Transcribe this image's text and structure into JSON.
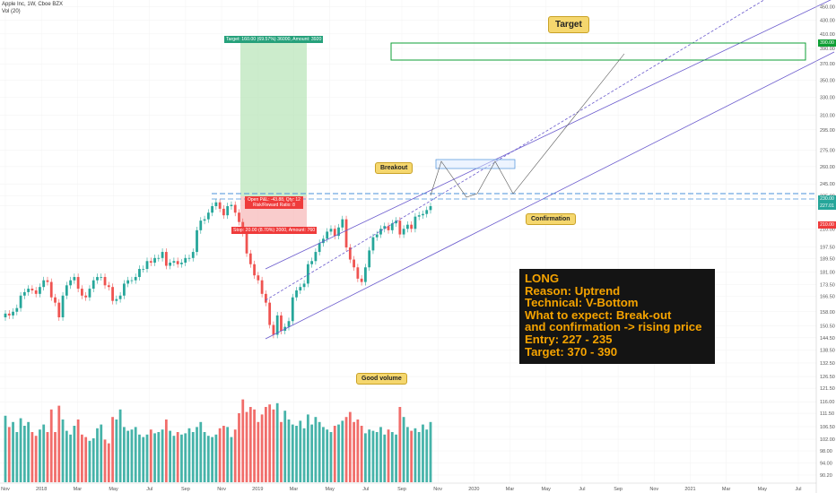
{
  "header": {
    "symbol_line": "Apple Inc, 1W, Cboe BZX",
    "volume_line": "Vol (20)"
  },
  "colors": {
    "up": "#26a69a",
    "down": "#ef5350",
    "channel": "#6a5acd",
    "target_box": "#0e9f34",
    "callout": "#f5d76e",
    "info_text": "#f5a300",
    "info_bg": "#141414"
  },
  "annotations": {
    "target": "Target",
    "breakout": "Breakout",
    "confirmation": "Confirmation",
    "good_volume": "Good volume",
    "take_profit": "Target: 160.00 (69.57%) 36000, Amount: 3920",
    "stop": "Stop: 20.00 (8.70%) 2000, Amount: 760",
    "open_pnl": "Open P&L: -43.88, Qty: 12",
    "risk_reward": "Risk/Reward Ratio: 8"
  },
  "info_box": {
    "lines": [
      "LONG",
      "Reason: Uptrend",
      "Technical: V-Bottom",
      "What to expect: Break-out",
      "and confirmation -> rising price",
      "Entry: 227 - 235",
      "Target: 370 - 390"
    ]
  },
  "axis_tags": {
    "top_tag": "390.00",
    "breakout_tag": "230.00",
    "price_tag": "227.01",
    "stop_tag": "210.00"
  },
  "chart_data": {
    "type": "candlestick",
    "title": "Apple Inc, 1W, Cboe BZX",
    "y_scale": "log",
    "ylim": [
      88,
      455
    ],
    "y_ticks": [
      90.2,
      94,
      98,
      102,
      106.5,
      111.5,
      116,
      121.5,
      126.5,
      132.5,
      138.5,
      144.5,
      150.5,
      158,
      166.5,
      173.5,
      181,
      189.5,
      197.5,
      210,
      227.5,
      235,
      245,
      260,
      275,
      295,
      310,
      330,
      350,
      370,
      390,
      410,
      430,
      450
    ],
    "x_ticks": [
      "Nov",
      "2018",
      "Mar",
      "May",
      "Jul",
      "Sep",
      "Nov",
      "2019",
      "Mar",
      "May",
      "Jul",
      "Sep",
      "Nov",
      "2020",
      "Mar",
      "May",
      "Jul",
      "Sep",
      "Nov",
      "2021",
      "Mar",
      "May",
      "Jul"
    ],
    "candles_close": [
      157,
      156,
      158,
      160,
      167,
      169,
      171,
      170,
      168,
      172,
      176,
      175,
      166,
      163,
      155,
      167,
      173,
      176,
      178,
      171,
      167,
      166,
      171,
      176,
      178,
      178,
      173,
      172,
      164,
      165,
      167,
      174,
      176,
      176,
      178,
      183,
      183,
      188,
      187,
      190,
      190,
      194,
      185,
      187,
      188,
      186,
      187,
      190,
      190,
      194,
      209,
      216,
      217,
      222,
      227,
      230,
      225,
      220,
      227,
      228,
      222,
      215,
      207,
      193,
      186,
      179,
      176,
      168,
      163,
      151,
      146,
      156,
      148,
      150,
      153,
      166,
      170,
      172,
      174,
      186,
      188,
      194,
      200,
      203,
      208,
      210,
      205,
      211,
      217,
      197,
      189,
      184,
      177,
      175,
      184,
      195,
      204,
      206,
      210,
      212,
      209,
      214,
      216,
      206,
      210,
      213,
      210,
      219,
      220,
      221,
      224,
      227
    ],
    "volumes": [
      53,
      44,
      48,
      40,
      51,
      45,
      48,
      40,
      37,
      42,
      46,
      40,
      58,
      40,
      61,
      50,
      41,
      38,
      45,
      50,
      38,
      36,
      33,
      35,
      43,
      46,
      34,
      31,
      52,
      50,
      58,
      44,
      41,
      42,
      44,
      38,
      36,
      38,
      42,
      39,
      40,
      42,
      50,
      41,
      37,
      40,
      38,
      39,
      43,
      40,
      44,
      48,
      40,
      37,
      36,
      38,
      43,
      45,
      44,
      36,
      42,
      55,
      66,
      56,
      60,
      58,
      48,
      54,
      60,
      62,
      58,
      63,
      48,
      57,
      50,
      46,
      45,
      49,
      43,
      54,
      46,
      52,
      48,
      44,
      42,
      40,
      45,
      46,
      49,
      52,
      56,
      48,
      50,
      45,
      39,
      42,
      41,
      40,
      44,
      38,
      42,
      40,
      38,
      60,
      52,
      44,
      41,
      43,
      40,
      46,
      42,
      48
    ],
    "volume_ylim": [
      0,
      100
    ],
    "levels": {
      "target_zone": [
        370,
        390
      ],
      "breakout": 230,
      "stop": 210,
      "take_profit": 390
    },
    "annotations": [
      "Target",
      "Breakout",
      "Confirmation",
      "Good volume"
    ]
  }
}
